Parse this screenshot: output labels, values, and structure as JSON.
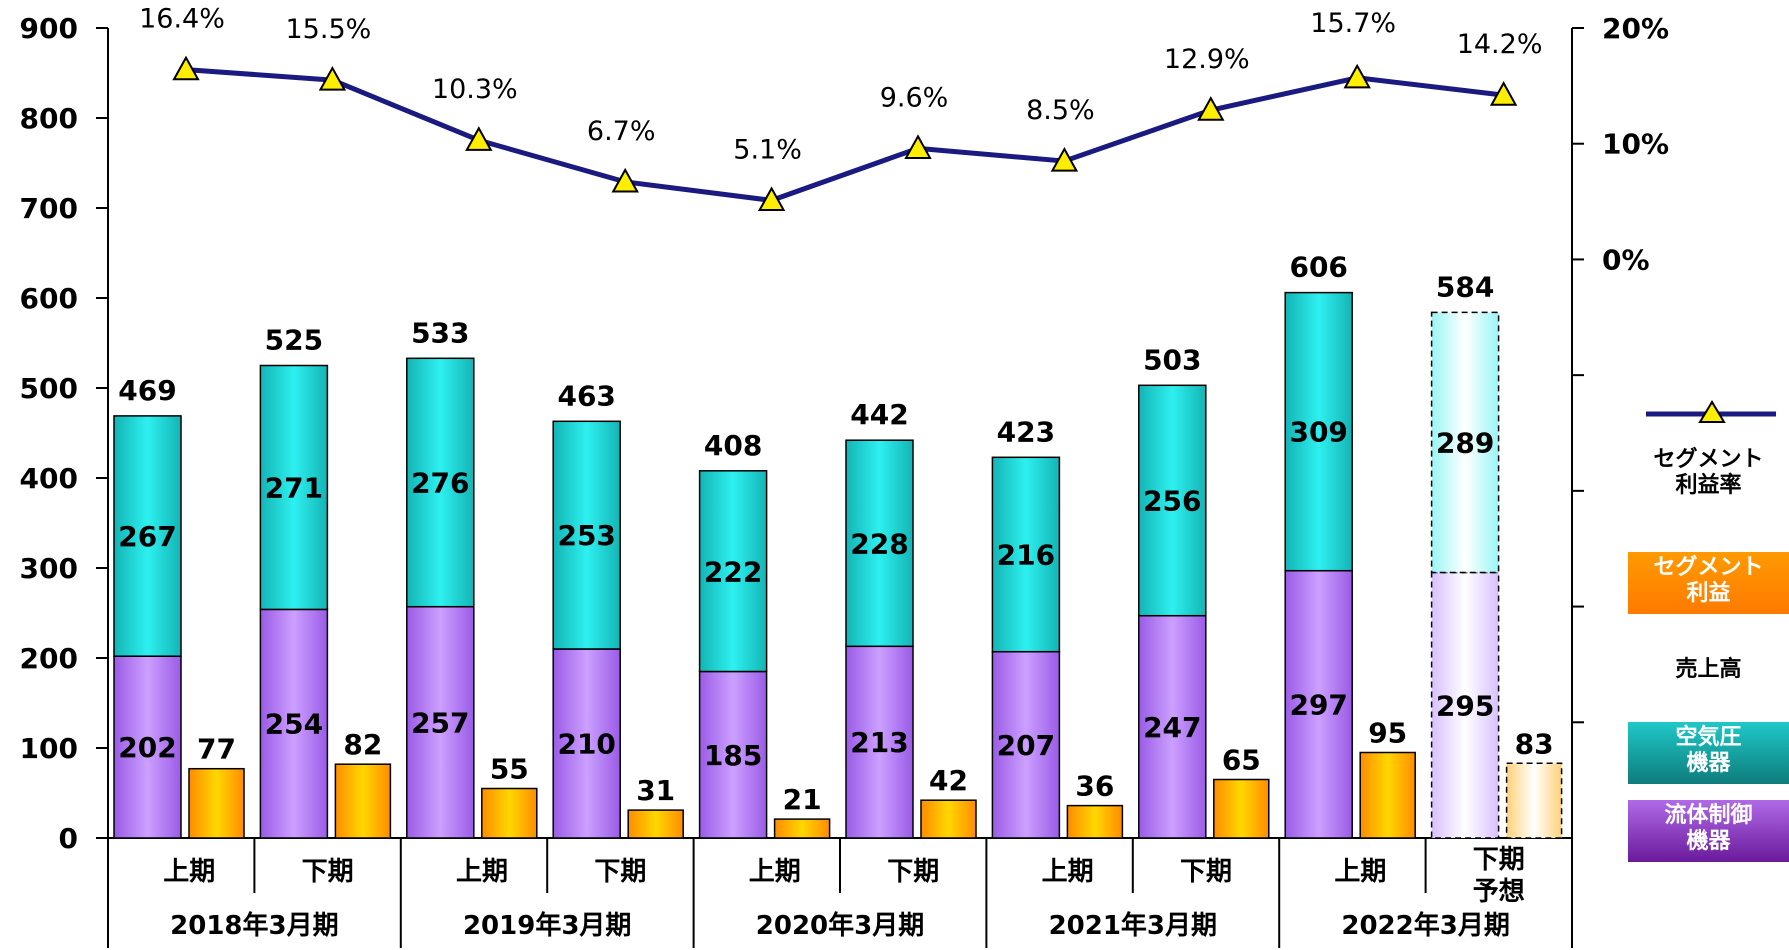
{
  "chart_data": {
    "type": "bar",
    "periods": [
      "2018年3月期",
      "2019年3月期",
      "2020年3月期",
      "2021年3月期",
      "2022年3月期"
    ],
    "halves": [
      "上期",
      "下期",
      "上期",
      "下期",
      "上期",
      "下期",
      "上期",
      "下期",
      "上期",
      "下期予想"
    ],
    "series": [
      {
        "name": "流体制御機器",
        "values": [
          202,
          254,
          257,
          210,
          185,
          213,
          207,
          247,
          297,
          295
        ],
        "color": "#b27df0"
      },
      {
        "name": "空気圧機器",
        "values": [
          267,
          271,
          276,
          253,
          222,
          228,
          216,
          256,
          309,
          289
        ],
        "color": "#1ec8c8"
      },
      {
        "name": "売上高",
        "values": [
          469,
          525,
          533,
          463,
          408,
          442,
          423,
          503,
          606,
          584
        ]
      },
      {
        "name": "セグメント利益",
        "values": [
          77,
          82,
          55,
          31,
          21,
          42,
          36,
          65,
          95,
          83
        ],
        "color": "#ff9a00"
      },
      {
        "name": "セグメント利益率",
        "values": [
          16.4,
          15.5,
          10.3,
          6.7,
          5.1,
          9.6,
          8.5,
          12.9,
          15.7,
          14.2
        ],
        "unit": "%",
        "color": "#1a1a80"
      }
    ],
    "rate_labels": [
      "16.4%",
      "15.5%",
      "10.3%",
      "6.7%",
      "5.1%",
      "9.6%",
      "8.5%",
      "12.9%",
      "15.7%",
      "14.2%"
    ],
    "forecast_index": 9,
    "y_left": {
      "ylim": [
        0,
        900
      ],
      "ticks": [
        "0",
        "100",
        "200",
        "300",
        "400",
        "500",
        "600",
        "700",
        "800",
        "900"
      ]
    },
    "y_right": {
      "ylim": [
        -50,
        20
      ],
      "ticks": [
        "0%",
        "10%",
        "20%"
      ]
    },
    "legend": [
      {
        "label": "セグメント\n利益率",
        "kind": "line"
      },
      {
        "label": "セグメント\n利益",
        "kind": "orange"
      },
      {
        "label": "売上高",
        "kind": "plain"
      },
      {
        "label": "空気圧\n機器",
        "kind": "teal"
      },
      {
        "label": "流体制御\n機器",
        "kind": "purple"
      }
    ]
  }
}
